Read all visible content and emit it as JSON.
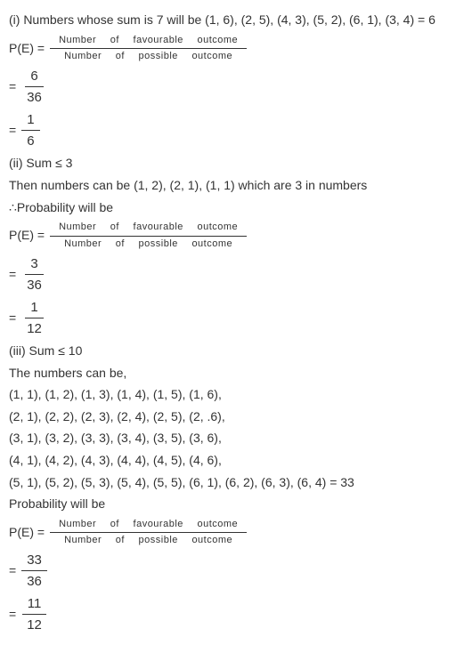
{
  "formula_label": "P(E) =",
  "equals": "=",
  "favourable_words": [
    "Number",
    "of",
    "favourable",
    "outcome"
  ],
  "possible_words": [
    "Number",
    "of",
    "possible",
    "outcome"
  ],
  "part1": {
    "heading": "(i) Numbers whose sum is 7 will be (1, 6), (2, 5), (4, 3), (5, 2), (6, 1), (3, 4) = 6",
    "frac1_num": "6",
    "frac1_den": "36",
    "frac2_num": "1",
    "frac2_den": "6"
  },
  "part2": {
    "heading": "(ii) Sum ≤ 3",
    "then_line": "Then numbers can be (1, 2), (2, 1), (1, 1) which are 3 in numbers",
    "prob_line": "∴Probability will be",
    "frac1_num": "3",
    "frac1_den": "36",
    "frac2_num": "1",
    "frac2_den": "12"
  },
  "part3": {
    "heading": "(iii) Sum ≤ 10",
    "intro": "The numbers can be,",
    "row1": "(1, 1), (1, 2), (1, 3), (1, 4), (1, 5), (1, 6),",
    "row2": "(2, 1), (2, 2), (2, 3), (2, 4), (2, 5), (2, .6),",
    "row3": "(3, 1), (3, 2), (3, 3), (3, 4), (3, 5), (3, 6),",
    "row4": "(4, 1), (4, 2), (4, 3), (4, 4), (4, 5), (4, 6),",
    "row5": "(5, 1), (5, 2), (5, 3), (5, 4), (5, 5), (6, 1), (6, 2), (6, 3), (6, 4) = 33",
    "prob_line": "Probability will be",
    "frac1_num": "33",
    "frac1_den": "36",
    "frac2_num": "11",
    "frac2_den": "12"
  }
}
